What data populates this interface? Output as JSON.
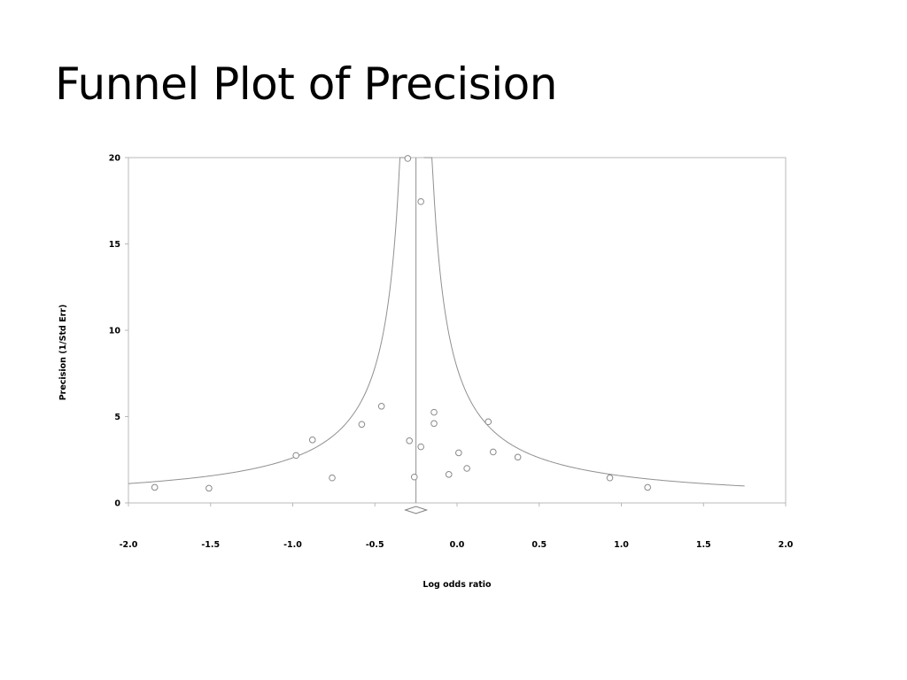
{
  "title": "Funnel Plot of Precision",
  "chart_data": {
    "type": "scatter",
    "title": "Funnel Plot of Precision",
    "xlabel": "Log odds ratio",
    "ylabel": "Precision (1/Std Err)",
    "xlim": [
      -2.0,
      2.0
    ],
    "ylim": [
      0,
      20
    ],
    "x_ticks": [
      "-2.0",
      "-1.5",
      "-1.0",
      "-0.5",
      "0.0",
      "0.5",
      "1.0",
      "1.5",
      "2.0"
    ],
    "y_ticks": [
      "0",
      "5",
      "10",
      "15",
      "20"
    ],
    "grid": false,
    "legend": "none",
    "mean_effect": -0.25,
    "points": [
      {
        "x": -1.84,
        "y": 0.9
      },
      {
        "x": -1.51,
        "y": 0.85
      },
      {
        "x": -0.98,
        "y": 2.75
      },
      {
        "x": -0.88,
        "y": 3.65
      },
      {
        "x": -0.76,
        "y": 1.45
      },
      {
        "x": -0.58,
        "y": 4.55
      },
      {
        "x": -0.46,
        "y": 5.6
      },
      {
        "x": -0.3,
        "y": 19.95
      },
      {
        "x": -0.29,
        "y": 3.6
      },
      {
        "x": -0.26,
        "y": 1.5
      },
      {
        "x": -0.22,
        "y": 17.45
      },
      {
        "x": -0.22,
        "y": 3.25
      },
      {
        "x": -0.14,
        "y": 5.25
      },
      {
        "x": -0.14,
        "y": 4.6
      },
      {
        "x": -0.05,
        "y": 1.65
      },
      {
        "x": 0.01,
        "y": 2.9
      },
      {
        "x": 0.06,
        "y": 2.0
      },
      {
        "x": 0.19,
        "y": 4.7
      },
      {
        "x": 0.22,
        "y": 2.95
      },
      {
        "x": 0.37,
        "y": 2.65
      },
      {
        "x": 0.93,
        "y": 1.45
      },
      {
        "x": 1.16,
        "y": 0.9
      }
    ]
  }
}
